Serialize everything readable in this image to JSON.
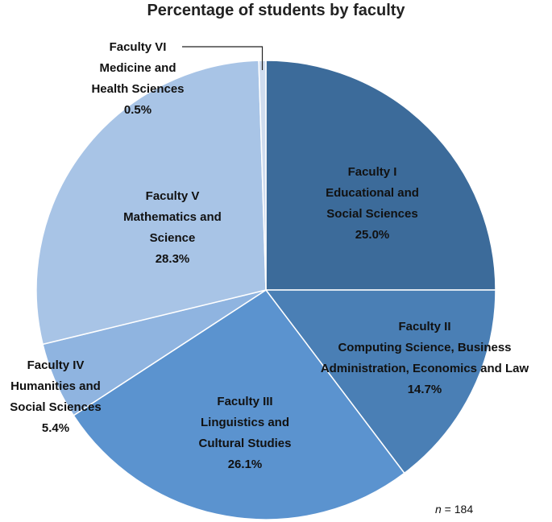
{
  "chart_data": {
    "type": "pie",
    "title": "Percentage of students by faculty",
    "note": {
      "variable": "n",
      "text": " = 184"
    },
    "slices": [
      {
        "lines": [
          "Faculty I",
          "Educational and",
          "Social Sciences"
        ],
        "value": 25.0,
        "value_label": "25.0%",
        "color": "#3c6b9a"
      },
      {
        "lines": [
          "Faculty II",
          "Computing Science, Business",
          "Administration, Economics and Law"
        ],
        "value": 14.7,
        "value_label": "14.7%",
        "color": "#4a7fb5"
      },
      {
        "lines": [
          "Faculty III",
          "Linguistics and",
          "Cultural Studies"
        ],
        "value": 26.1,
        "value_label": "26.1%",
        "color": "#5b93cf"
      },
      {
        "lines": [
          "Faculty IV",
          "Humanities and",
          "Social Sciences"
        ],
        "value": 5.4,
        "value_label": "5.4%",
        "color": "#8fb4e0"
      },
      {
        "lines": [
          "Faculty V",
          "Mathematics and",
          "Science"
        ],
        "value": 28.3,
        "value_label": "28.3%",
        "color": "#a8c4e6"
      },
      {
        "lines": [
          "Faculty VI",
          "Medicine and",
          "Health Sciences"
        ],
        "value": 0.5,
        "value_label": "0.5%",
        "color": "#cfdcef"
      }
    ]
  }
}
